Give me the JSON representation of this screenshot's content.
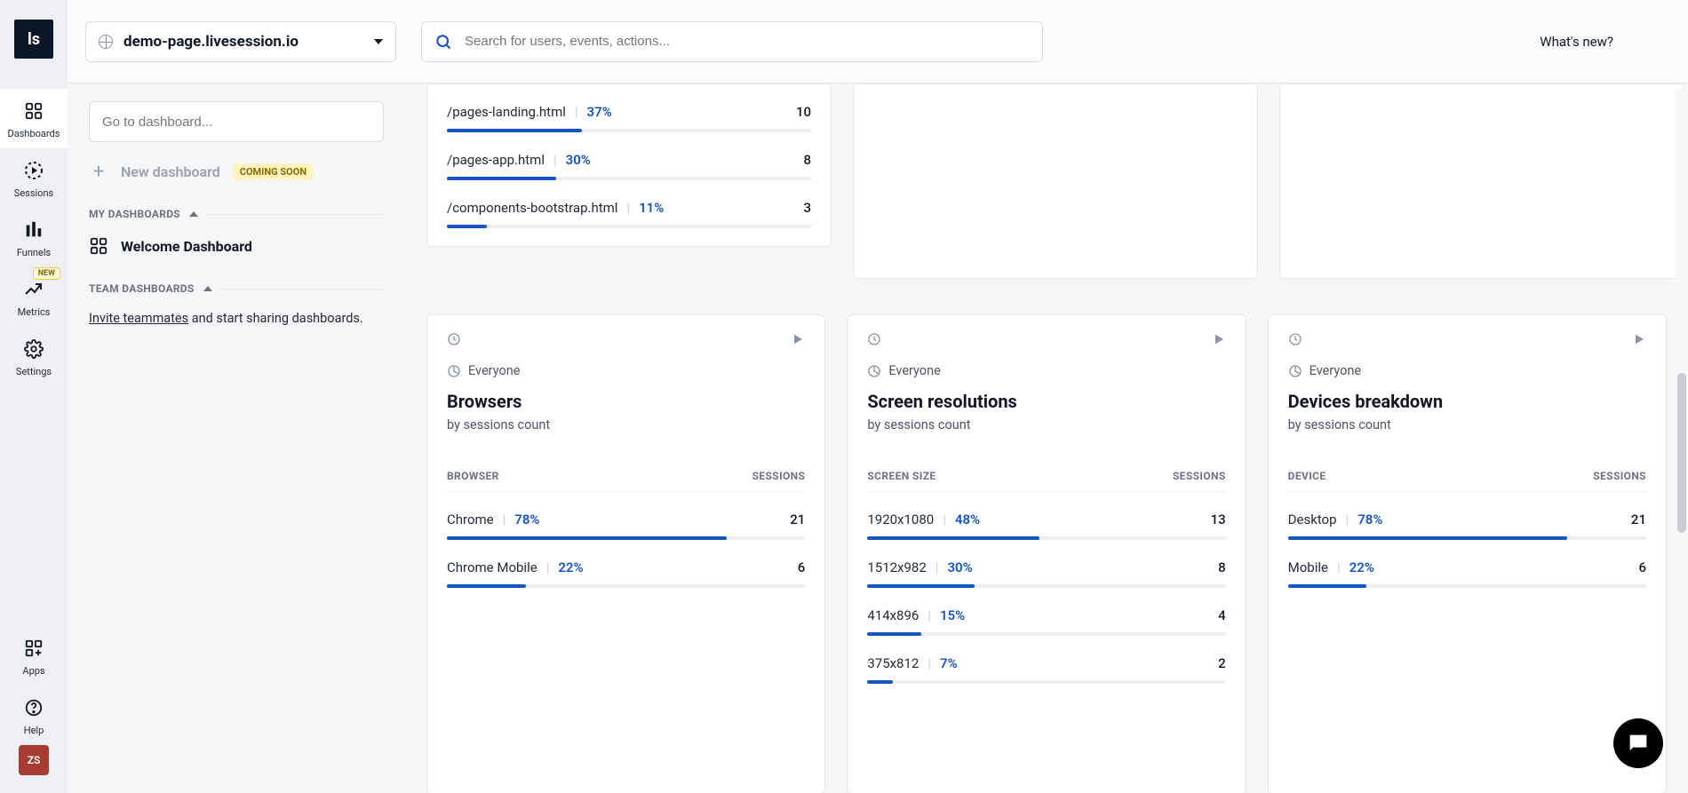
{
  "colors": {
    "accent": "#1554c2",
    "bar_track": "#eceef1",
    "page_bg": "#f5f6f8",
    "card_border": "#e5e7eb",
    "text_primary": "#111827",
    "text_muted": "#6b7280",
    "logo_bg": "#0b1629",
    "avatar_bg": "#a83c32",
    "pill_bg": "#fff3bf",
    "pill_fg": "#8a6d00"
  },
  "rail": {
    "logo": "ls",
    "items": [
      {
        "label": "Dashboards",
        "active": true,
        "badge": ""
      },
      {
        "label": "Sessions",
        "active": false,
        "badge": ""
      },
      {
        "label": "Funnels",
        "active": false,
        "badge": ""
      },
      {
        "label": "Metrics",
        "active": false,
        "badge": "NEW"
      },
      {
        "label": "Settings",
        "active": false,
        "badge": ""
      }
    ],
    "bottom": [
      {
        "label": "Apps"
      },
      {
        "label": "Help"
      }
    ],
    "avatar": "ZS"
  },
  "topbar": {
    "site": "demo-page.livesession.io",
    "search_placeholder": "Search for users, events, actions...",
    "whats_new": "What's new?"
  },
  "dash_panel": {
    "search_placeholder": "Go to dashboard...",
    "new_dashboard": "New dashboard",
    "coming_soon": "COMING SOON",
    "my_dashboards": "MY DASHBOARDS",
    "welcome": "Welcome Dashboard",
    "team_dashboards": "TEAM DASHBOARDS",
    "invite_link": "Invite teammates",
    "invite_rest": " and start sharing dashboards."
  },
  "top_card": {
    "rows": [
      {
        "name": "/pages-landing.html",
        "pct": "37%",
        "pct_num": 37,
        "count": "10"
      },
      {
        "name": "/pages-app.html",
        "pct": "30%",
        "pct_num": 30,
        "count": "8"
      },
      {
        "name": "/components-bootstrap.html",
        "pct": "11%",
        "pct_num": 11,
        "count": "3"
      }
    ]
  },
  "cards": [
    {
      "everyone": "Everyone",
      "title": "Browsers",
      "subtitle": "by sessions count",
      "col_left": "BROWSER",
      "col_right": "SESSIONS",
      "rows": [
        {
          "name": "Chrome",
          "pct": "78%",
          "pct_num": 78,
          "count": "21"
        },
        {
          "name": "Chrome Mobile",
          "pct": "22%",
          "pct_num": 22,
          "count": "6"
        }
      ]
    },
    {
      "everyone": "Everyone",
      "title": "Screen resolutions",
      "subtitle": "by sessions count",
      "col_left": "SCREEN SIZE",
      "col_right": "SESSIONS",
      "rows": [
        {
          "name": "1920x1080",
          "pct": "48%",
          "pct_num": 48,
          "count": "13"
        },
        {
          "name": "1512x982",
          "pct": "30%",
          "pct_num": 30,
          "count": "8"
        },
        {
          "name": "414x896",
          "pct": "15%",
          "pct_num": 15,
          "count": "4"
        },
        {
          "name": "375x812",
          "pct": "7%",
          "pct_num": 7,
          "count": "2"
        }
      ]
    },
    {
      "everyone": "Everyone",
      "title": "Devices breakdown",
      "subtitle": "by sessions count",
      "col_left": "DEVICE",
      "col_right": "SESSIONS",
      "rows": [
        {
          "name": "Desktop",
          "pct": "78%",
          "pct_num": 78,
          "count": "21"
        },
        {
          "name": "Mobile",
          "pct": "22%",
          "pct_num": 22,
          "count": "6"
        }
      ]
    }
  ]
}
